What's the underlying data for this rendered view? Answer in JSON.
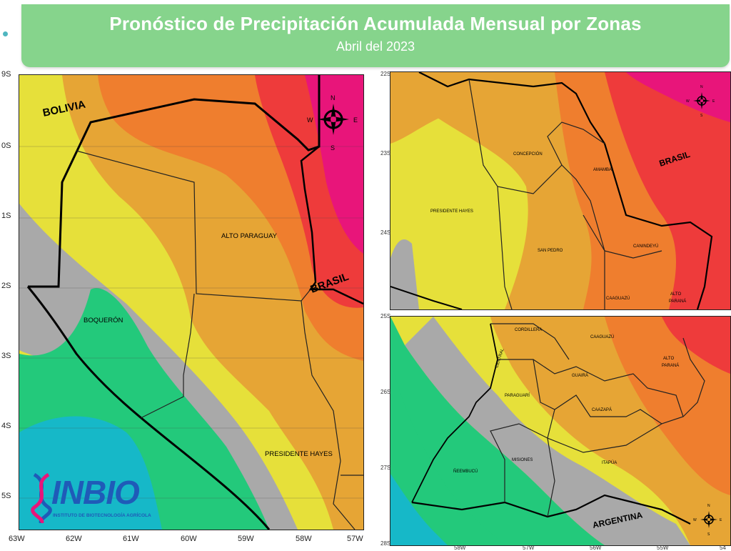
{
  "header": {
    "title": "Pronóstico de Precipitación Acumulada Mensual por Zonas",
    "subtitle": "Abril del 2023"
  },
  "map_main": {
    "country_labels": [
      "BOLIVIA",
      "BRASIL"
    ],
    "region_labels": [
      "ALTO PARAGUAY",
      "BOQUERÓN",
      "PRESIDENTE HAYES"
    ],
    "compass": {
      "n": "N",
      "s": "S",
      "e": "E",
      "w": "W"
    },
    "lon_ticks": [
      "63W",
      "62W",
      "61W",
      "60W",
      "59W",
      "58W",
      "57W"
    ],
    "lat_ticks": [
      "9S",
      "0S",
      "1S",
      "2S",
      "3S",
      "4S",
      "5S"
    ]
  },
  "map_north": {
    "country_labels": [
      "BRASIL"
    ],
    "region_labels": [
      "CONCEPCIÓN",
      "AMAMBAI",
      "PRESIDENTE HAYES",
      "SAN PEDRO",
      "CANINDEYÚ",
      "CAAGUAZÚ",
      "ALTO",
      "PARANÁ"
    ],
    "compass": {
      "n": "N",
      "s": "S",
      "e": "E",
      "w": "W"
    },
    "lat_ticks": [
      "22S",
      "23S",
      "24S"
    ]
  },
  "map_south": {
    "country_labels": [
      "ARGENTINA"
    ],
    "region_labels": [
      "CORDILLERA",
      "CAAGUAZÚ",
      "CENTRAL",
      "ALTO",
      "PARANÁ",
      "GUAIRÁ",
      "PARAGUARÍ",
      "CAAZAPÁ",
      "ÑEEMBUCÚ",
      "MISIONES",
      "ITAPÚA"
    ],
    "compass": {
      "n": "N",
      "s": "S",
      "e": "E",
      "w": "W"
    },
    "lat_ticks": [
      "25S",
      "26S",
      "27S",
      "28S"
    ],
    "lon_ticks": [
      "58W",
      "57W",
      "56W",
      "55W",
      "54"
    ]
  },
  "logo": {
    "name": "INBIO",
    "tagline": "INSTITUTO DE BIOTECNOLOGÍA AGRÍCOLA"
  },
  "colors": {
    "header_bg": "#86d48c",
    "yellow": "#e6e03a",
    "light_orange": "#e6a535",
    "orange": "#ef7e2e",
    "red": "#ee3b3b",
    "magenta": "#e8157a",
    "gray": "#a9a9a9",
    "green": "#23c97b",
    "cyan": "#16b8c8",
    "logo_blue": "#1f5bb8"
  }
}
